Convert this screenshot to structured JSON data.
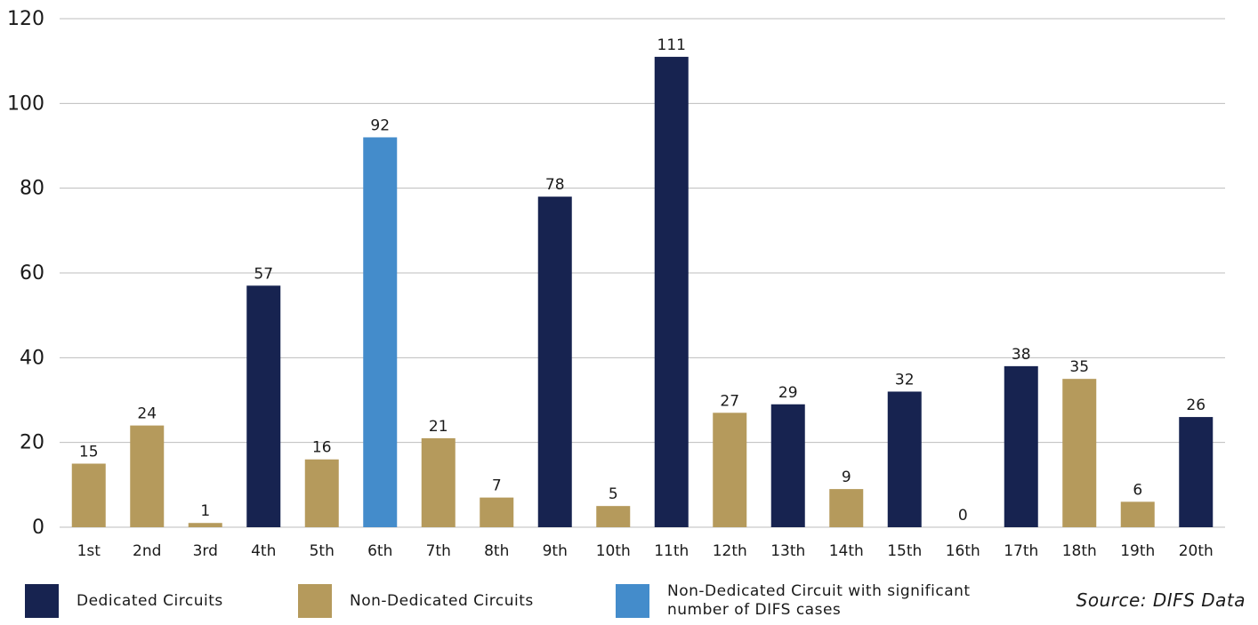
{
  "colors": {
    "dedicated": "#172350",
    "non_dedicated": "#b59a5c",
    "significant": "#448ccb",
    "grid": "#bdbdbd"
  },
  "chart_data": {
    "type": "bar",
    "categories": [
      "1st",
      "2nd",
      "3rd",
      "4th",
      "5th",
      "6th",
      "7th",
      "8th",
      "9th",
      "10th",
      "11th",
      "12th",
      "13th",
      "14th",
      "15th",
      "16th",
      "17th",
      "18th",
      "19th",
      "20th"
    ],
    "values": [
      15,
      24,
      1,
      57,
      16,
      92,
      21,
      7,
      78,
      5,
      111,
      27,
      29,
      9,
      32,
      0,
      38,
      35,
      6,
      26
    ],
    "bar_labels": [
      "15",
      "24",
      "1",
      "57",
      "16",
      "92",
      "21",
      "7",
      "78",
      "5",
      "111",
      "27",
      "29",
      "9",
      "32",
      "0",
      "38",
      "35",
      "6",
      "26"
    ],
    "groups": [
      "non_dedicated",
      "non_dedicated",
      "non_dedicated",
      "dedicated",
      "non_dedicated",
      "significant",
      "non_dedicated",
      "non_dedicated",
      "dedicated",
      "non_dedicated",
      "dedicated",
      "non_dedicated",
      "dedicated",
      "non_dedicated",
      "dedicated",
      "non_dedicated",
      "dedicated",
      "non_dedicated",
      "non_dedicated",
      "dedicated"
    ],
    "ylim": [
      0,
      120
    ],
    "yticks": [
      "0",
      "20",
      "40",
      "60",
      "80",
      "100",
      "120"
    ],
    "grid": true,
    "title": "",
    "xlabel": "",
    "ylabel": ""
  },
  "legend": {
    "dedicated": "Dedicated Circuits",
    "non_dedicated": "Non-Dedicated Circuits",
    "significant": "Non-Dedicated Circuit with significant number of DIFS cases"
  },
  "source": "Source:  DIFS Data"
}
